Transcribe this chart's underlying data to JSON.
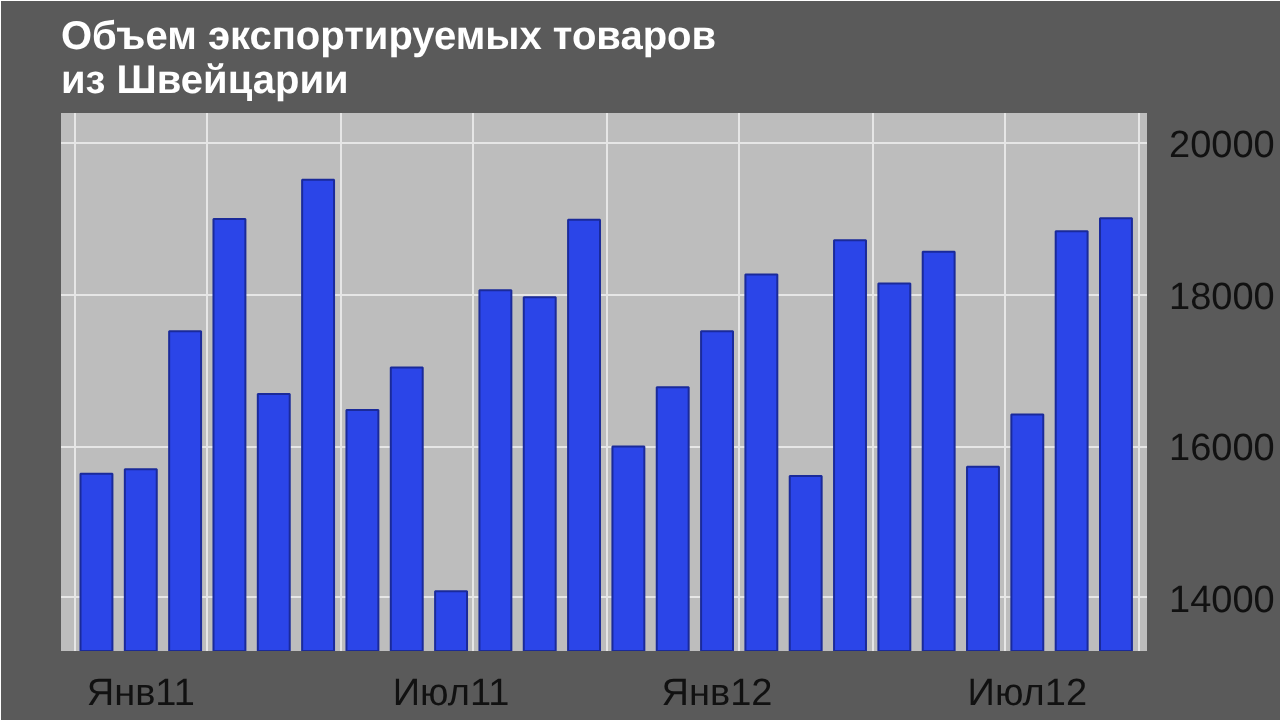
{
  "chart_data": {
    "type": "bar",
    "title": "Объем экспортируемых товаров\nиз Швейцарии",
    "categories": [
      null,
      "Янв11",
      null,
      null,
      null,
      null,
      null,
      null,
      "Июл11",
      null,
      null,
      null,
      null,
      null,
      "Янв12",
      null,
      null,
      null,
      null,
      null,
      null,
      "Июл12",
      null,
      null
    ],
    "series": [
      {
        "color": "#2b45e8",
        "values": [
          15640,
          15700,
          17520,
          19000,
          16690,
          19520,
          16480,
          17040,
          14090,
          18060,
          17970,
          18990,
          16000,
          16780,
          17520,
          18270,
          15610,
          18720,
          18150,
          18570,
          15730,
          16420,
          18840,
          19010
        ]
      }
    ],
    "ylim": [
      13300,
      20400
    ],
    "yticks": [
      14000,
      16000,
      18000,
      20000
    ],
    "grid": true
  }
}
